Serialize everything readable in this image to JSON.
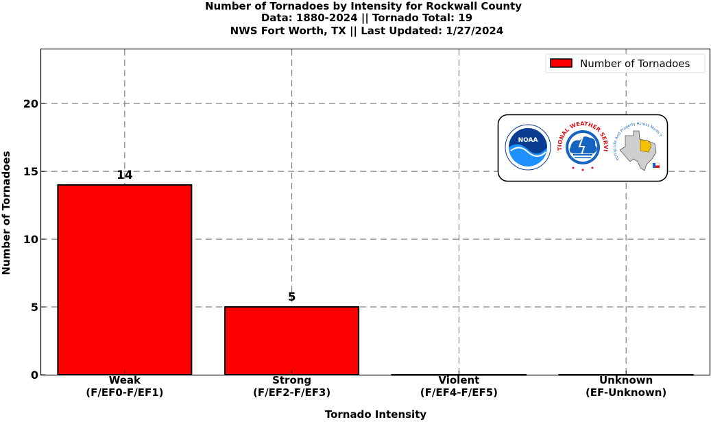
{
  "chart_data": {
    "type": "bar",
    "title_lines": [
      "Number of Tornadoes by Intensity for Rockwall County",
      "Data: 1880-2024 || Tornado Total: 19",
      "NWS Fort Worth, TX || Last Updated: 1/27/2024"
    ],
    "xlabel": "Tornado Intensity",
    "ylabel": "Number of Tornadoes",
    "categories": [
      [
        "Weak",
        "(F/EF0-F/EF1)"
      ],
      [
        "Strong",
        "(F/EF2-F/EF3)"
      ],
      [
        "Violent",
        "(F/EF4-F/EF5)"
      ],
      [
        "Unknown",
        "(EF-Unknown)"
      ]
    ],
    "series": [
      {
        "name": "Number of Tornadoes",
        "values": [
          14,
          5,
          0,
          0
        ],
        "color": "#ff0000"
      }
    ],
    "data_labels": [
      "14",
      "5",
      "",
      ""
    ],
    "ylim": [
      0,
      24
    ],
    "yticks": [
      0,
      5,
      10,
      15,
      20
    ],
    "grid": true,
    "legend_position": "top-right"
  },
  "logos": {
    "noaa": {
      "text": "NOAA",
      "colors": [
        "#0a3d91",
        "#1e90ff"
      ]
    },
    "nws": {
      "text": "NATIONAL WEATHER SERVICE",
      "colors": [
        "#d7141a",
        "#1565c0"
      ]
    },
    "wfo": {
      "text": "Protecting Life And Property Across North Texas",
      "colors": [
        "#888888",
        "#f2c200"
      ]
    }
  }
}
